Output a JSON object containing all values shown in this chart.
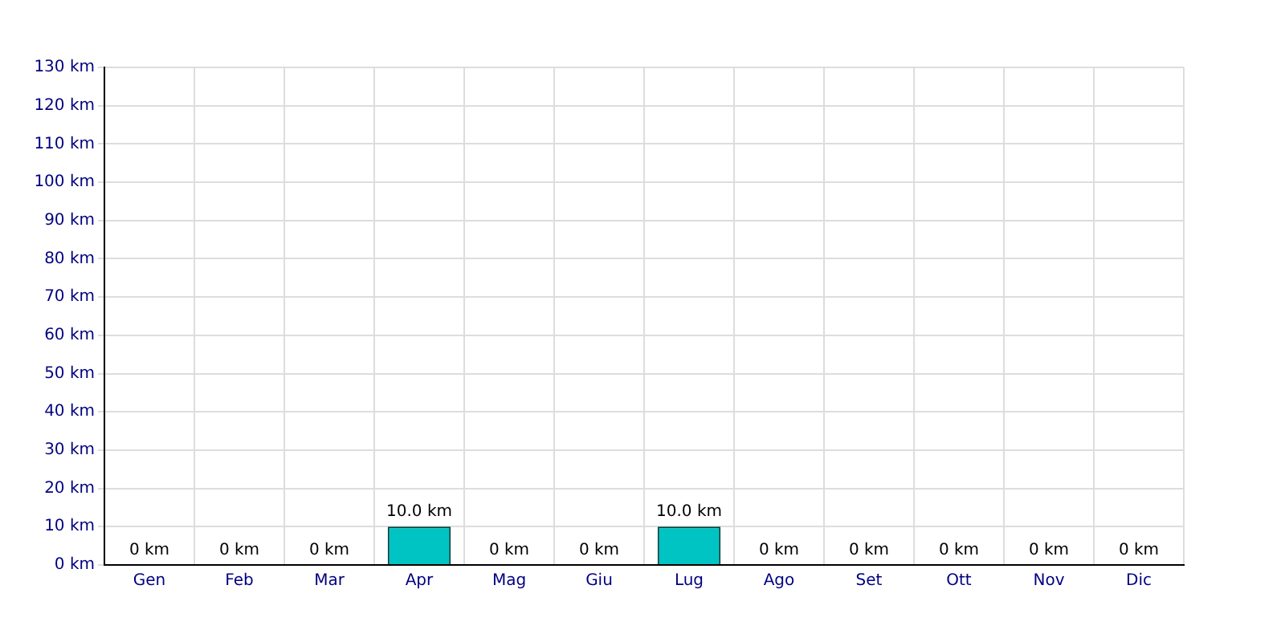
{
  "chart_data": {
    "type": "bar",
    "categories": [
      "Gen",
      "Feb",
      "Mar",
      "Apr",
      "Mag",
      "Giu",
      "Lug",
      "Ago",
      "Set",
      "Ott",
      "Nov",
      "Dic"
    ],
    "values": [
      0,
      0,
      0,
      10,
      0,
      0,
      10,
      0,
      0,
      0,
      0,
      0
    ],
    "value_labels": [
      "0 km",
      "0 km",
      "0 km",
      "10.0 km",
      "0 km",
      "0 km",
      "10.0 km",
      "0 km",
      "0 km",
      "0 km",
      "0 km",
      "0 km"
    ],
    "color": "#00c4c4",
    "ylim": [
      0,
      130
    ],
    "yticks": [
      {
        "value": 0,
        "label": "0 km"
      },
      {
        "value": 10,
        "label": "10 km"
      },
      {
        "value": 20,
        "label": "20 km"
      },
      {
        "value": 30,
        "label": "30 km"
      },
      {
        "value": 40,
        "label": "40 km"
      },
      {
        "value": 50,
        "label": "50 km"
      },
      {
        "value": 60,
        "label": "60 km"
      },
      {
        "value": 70,
        "label": "70 km"
      },
      {
        "value": 80,
        "label": "80 km"
      },
      {
        "value": 90,
        "label": "90 km"
      },
      {
        "value": 100,
        "label": "100 km"
      },
      {
        "value": 110,
        "label": "110 km"
      },
      {
        "value": 120,
        "label": "120 km"
      },
      {
        "value": 130,
        "label": "130 km"
      }
    ],
    "grid": true
  }
}
